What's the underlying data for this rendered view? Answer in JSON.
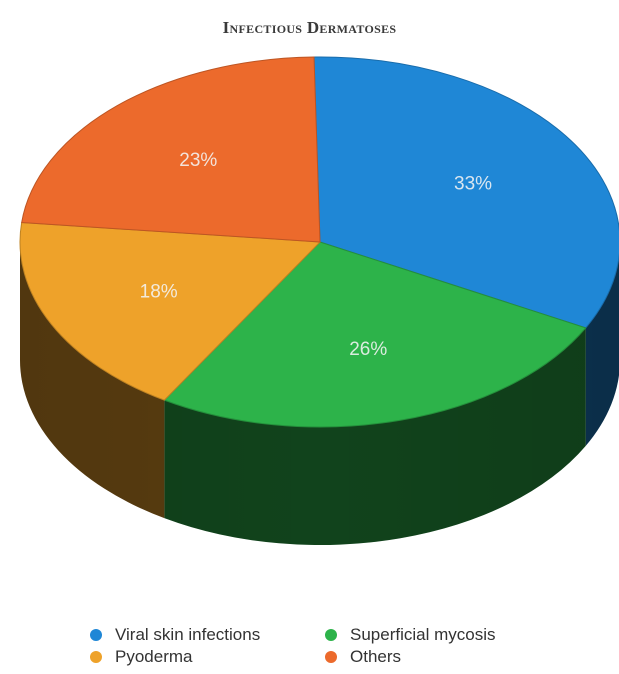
{
  "chart_data": {
    "type": "pie",
    "title": "Infectious Dermatoses",
    "slices": [
      {
        "name": "Viral skin infections",
        "value": 33,
        "label": "33%",
        "color": "#1f87d6"
      },
      {
        "name": "Superficial mycosis",
        "value": 26,
        "label": "26%",
        "color": "#2db34a"
      },
      {
        "name": "Pyoderma",
        "value": 18,
        "label": "18%",
        "color": "#eea22a"
      },
      {
        "name": "Others",
        "value": 23,
        "label": "23%",
        "color": "#ec6a2c"
      }
    ],
    "legend_position": "bottom",
    "style": "3d"
  }
}
